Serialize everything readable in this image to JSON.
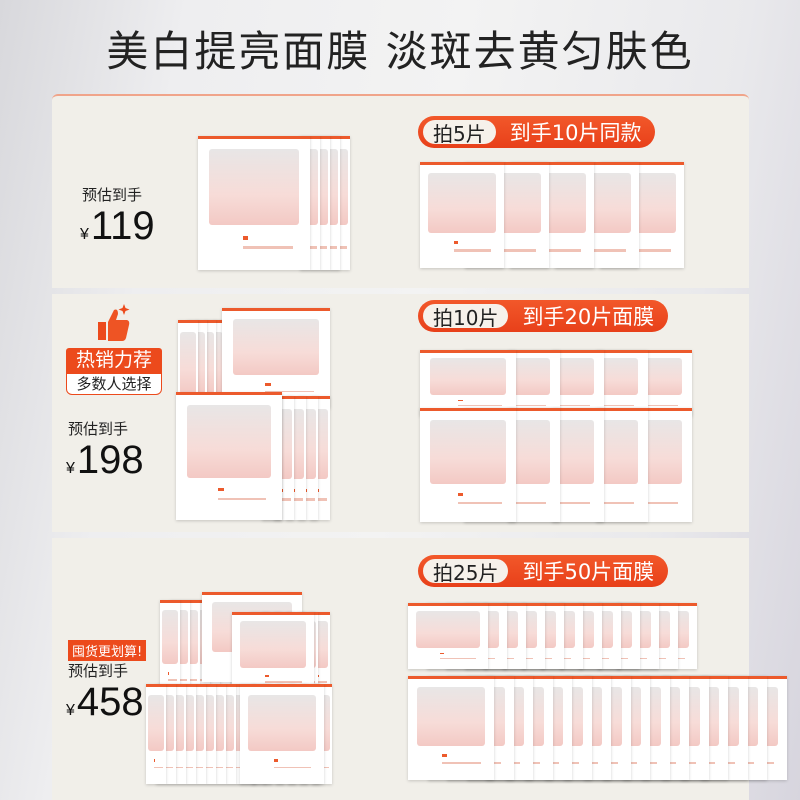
{
  "title": "美白提亮面膜 淡斑去黄匀肤色",
  "tiers": [
    {
      "buy": "拍5片",
      "get": "到手10片同款",
      "price_label": "预估到手",
      "currency": "¥",
      "price": "119"
    },
    {
      "buy": "拍10片",
      "get": "到手20片面膜",
      "price_label": "预估到手",
      "currency": "¥",
      "price": "198",
      "badge_top": "热销力荐",
      "badge_bottom": "多数人选择"
    },
    {
      "buy": "拍25片",
      "get": "到手50片面膜",
      "price_label": "预估到手",
      "currency": "¥",
      "price": "458",
      "tag": "囤货更划算!"
    }
  ],
  "colors": {
    "accent": "#ec4a1c",
    "panel": "#f1efe9"
  },
  "icons": [
    "thumbs-up-icon",
    "sparkle-icon"
  ]
}
